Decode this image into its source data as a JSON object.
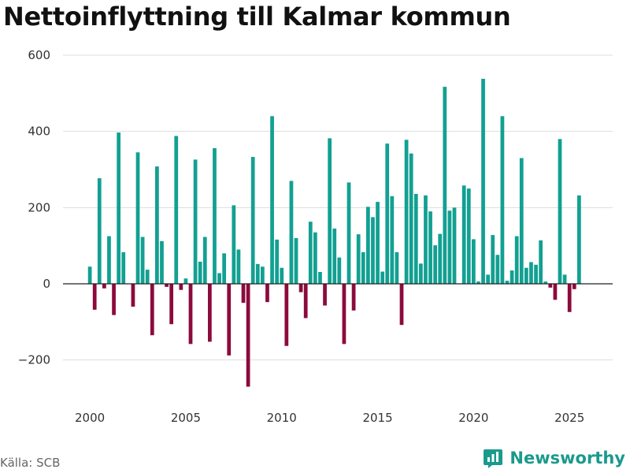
{
  "chart_data": {
    "type": "bar",
    "title": "Nettoinflyttning till Kalmar kommun",
    "xlabel": "",
    "ylabel": "",
    "xlim": [
      1998.6,
      2027.25
    ],
    "ylim": [
      -300,
      600
    ],
    "yticks": [
      -200,
      0,
      200,
      400,
      600
    ],
    "ytick_labels": [
      "−200",
      "0",
      "200",
      "400",
      "600"
    ],
    "xticks": [
      2000,
      2005,
      2010,
      2015,
      2020,
      2025
    ],
    "xtick_labels": [
      "2000",
      "2005",
      "2010",
      "2015",
      "2020",
      "2025"
    ],
    "grid": true,
    "positive_color": "#12a092",
    "negative_color": "#8c0a3c",
    "periodicity": "quarterly",
    "start_period": "2000 Q1",
    "values": [
      45,
      -68,
      277,
      -12,
      125,
      -82,
      397,
      83,
      0,
      -60,
      345,
      123,
      37,
      -135,
      308,
      112,
      -8,
      -106,
      388,
      -16,
      14,
      -158,
      326,
      58,
      123,
      -152,
      356,
      28,
      80,
      -188,
      206,
      90,
      -50,
      -270,
      333,
      52,
      45,
      -48,
      440,
      116,
      42,
      -163,
      270,
      120,
      -22,
      -90,
      163,
      135,
      31,
      -57,
      382,
      145,
      69,
      -158,
      266,
      -70,
      130,
      83,
      202,
      175,
      215,
      32,
      368,
      230,
      83,
      -108,
      378,
      342,
      236,
      53,
      232,
      190,
      101,
      131,
      517,
      192,
      200,
      0,
      258,
      250,
      117,
      6,
      538,
      24,
      128,
      76,
      440,
      8,
      35,
      125,
      330,
      42,
      57,
      50,
      114,
      6,
      -10,
      -42,
      380,
      24,
      -74,
      -14,
      232
    ]
  },
  "source": "Källa: SCB",
  "brand": {
    "name": "Newsworthy",
    "logo_icon": "newsworthy-bar-chart-logo-icon",
    "color": "#1a9a8c"
  }
}
